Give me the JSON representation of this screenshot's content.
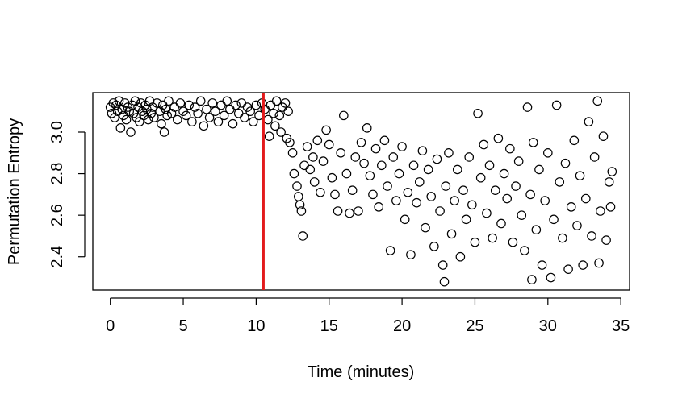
{
  "chart_data": {
    "type": "scatter",
    "title": "",
    "xlabel": "Time (minutes)",
    "ylabel": "Permutation Entropy",
    "xlim": [
      -1.2,
      35.6
    ],
    "ylim": [
      2.24,
      3.19
    ],
    "xticks": [
      "0",
      "5",
      "10",
      "15",
      "20",
      "25",
      "30",
      "35"
    ],
    "yticks": [
      "2.4",
      "2.6",
      "2.8",
      "3.0"
    ],
    "grid": false,
    "legend": "none",
    "marker": "open-circle",
    "marker_color": "#000000",
    "vline": {
      "x": 10.5,
      "color": "#e31a1c"
    },
    "points": [
      [
        0.0,
        3.12
      ],
      [
        0.1,
        3.09
      ],
      [
        0.2,
        3.14
      ],
      [
        0.3,
        3.07
      ],
      [
        0.4,
        3.13
      ],
      [
        0.5,
        3.1
      ],
      [
        0.6,
        3.15
      ],
      [
        0.7,
        3.02
      ],
      [
        0.8,
        3.11
      ],
      [
        0.9,
        3.08
      ],
      [
        1.0,
        3.14
      ],
      [
        1.1,
        3.06
      ],
      [
        1.2,
        3.12
      ],
      [
        1.3,
        3.1
      ],
      [
        1.4,
        3.0
      ],
      [
        1.5,
        3.13
      ],
      [
        1.6,
        3.09
      ],
      [
        1.7,
        3.15
      ],
      [
        1.8,
        3.07
      ],
      [
        1.9,
        3.12
      ],
      [
        2.0,
        3.05
      ],
      [
        2.1,
        3.14
      ],
      [
        2.2,
        3.1
      ],
      [
        2.3,
        3.08
      ],
      [
        2.4,
        3.13
      ],
      [
        2.5,
        3.11
      ],
      [
        2.6,
        3.06
      ],
      [
        2.7,
        3.15
      ],
      [
        2.8,
        3.09
      ],
      [
        2.9,
        3.12
      ],
      [
        3.0,
        3.07
      ],
      [
        3.2,
        3.14
      ],
      [
        3.4,
        3.1
      ],
      [
        3.5,
        3.04
      ],
      [
        3.6,
        3.13
      ],
      [
        3.7,
        3.0
      ],
      [
        3.8,
        3.11
      ],
      [
        3.9,
        3.08
      ],
      [
        4.0,
        3.15
      ],
      [
        4.2,
        3.09
      ],
      [
        4.4,
        3.12
      ],
      [
        4.6,
        3.06
      ],
      [
        4.8,
        3.14
      ],
      [
        5.0,
        3.1
      ],
      [
        5.2,
        3.08
      ],
      [
        5.4,
        3.13
      ],
      [
        5.6,
        3.05
      ],
      [
        5.8,
        3.12
      ],
      [
        6.0,
        3.09
      ],
      [
        6.2,
        3.15
      ],
      [
        6.4,
        3.03
      ],
      [
        6.6,
        3.11
      ],
      [
        6.8,
        3.07
      ],
      [
        7.0,
        3.14
      ],
      [
        7.2,
        3.1
      ],
      [
        7.4,
        3.05
      ],
      [
        7.6,
        3.13
      ],
      [
        7.8,
        3.08
      ],
      [
        8.0,
        3.15
      ],
      [
        8.2,
        3.11
      ],
      [
        8.4,
        3.04
      ],
      [
        8.6,
        3.13
      ],
      [
        8.8,
        3.09
      ],
      [
        9.0,
        3.14
      ],
      [
        9.2,
        3.07
      ],
      [
        9.4,
        3.12
      ],
      [
        9.6,
        3.1
      ],
      [
        9.8,
        3.05
      ],
      [
        10.0,
        3.13
      ],
      [
        10.2,
        3.08
      ],
      [
        10.4,
        3.14
      ],
      [
        10.6,
        3.11
      ],
      [
        10.8,
        3.06
      ],
      [
        11.0,
        3.13
      ],
      [
        11.2,
        3.09
      ],
      [
        11.4,
        3.15
      ],
      [
        11.6,
        3.08
      ],
      [
        11.8,
        3.12
      ],
      [
        12.0,
        3.14
      ],
      [
        12.2,
        3.1
      ],
      [
        10.9,
        2.98
      ],
      [
        11.3,
        3.03
      ],
      [
        11.7,
        3.0
      ],
      [
        12.1,
        2.97
      ],
      [
        12.3,
        2.95
      ],
      [
        12.5,
        2.9
      ],
      [
        12.6,
        2.8
      ],
      [
        12.8,
        2.74
      ],
      [
        12.9,
        2.69
      ],
      [
        13.0,
        2.65
      ],
      [
        13.1,
        2.62
      ],
      [
        13.2,
        2.5
      ],
      [
        13.3,
        2.84
      ],
      [
        13.5,
        2.93
      ],
      [
        13.7,
        2.82
      ],
      [
        13.9,
        2.88
      ],
      [
        14.0,
        2.76
      ],
      [
        14.2,
        2.96
      ],
      [
        14.4,
        2.71
      ],
      [
        14.6,
        2.86
      ],
      [
        14.8,
        3.01
      ],
      [
        15.0,
        2.94
      ],
      [
        15.2,
        2.78
      ],
      [
        15.4,
        2.7
      ],
      [
        15.6,
        2.62
      ],
      [
        15.8,
        2.9
      ],
      [
        16.0,
        3.08
      ],
      [
        16.2,
        2.8
      ],
      [
        16.4,
        2.61
      ],
      [
        16.6,
        2.72
      ],
      [
        16.8,
        2.88
      ],
      [
        17.0,
        2.62
      ],
      [
        17.2,
        2.95
      ],
      [
        17.4,
        2.85
      ],
      [
        17.6,
        3.02
      ],
      [
        17.8,
        2.79
      ],
      [
        18.0,
        2.7
      ],
      [
        18.2,
        2.92
      ],
      [
        18.4,
        2.64
      ],
      [
        18.6,
        2.84
      ],
      [
        18.8,
        2.96
      ],
      [
        19.0,
        2.74
      ],
      [
        19.2,
        2.43
      ],
      [
        19.4,
        2.88
      ],
      [
        19.6,
        2.67
      ],
      [
        19.8,
        2.8
      ],
      [
        20.0,
        2.93
      ],
      [
        20.2,
        2.58
      ],
      [
        20.4,
        2.71
      ],
      [
        20.6,
        2.41
      ],
      [
        20.8,
        2.84
      ],
      [
        21.0,
        2.66
      ],
      [
        21.2,
        2.76
      ],
      [
        21.4,
        2.91
      ],
      [
        21.6,
        2.54
      ],
      [
        21.8,
        2.82
      ],
      [
        22.0,
        2.69
      ],
      [
        22.2,
        2.45
      ],
      [
        22.4,
        2.87
      ],
      [
        22.6,
        2.62
      ],
      [
        22.8,
        2.36
      ],
      [
        22.9,
        2.28
      ],
      [
        23.0,
        2.74
      ],
      [
        23.2,
        2.9
      ],
      [
        23.4,
        2.51
      ],
      [
        23.6,
        2.67
      ],
      [
        23.8,
        2.82
      ],
      [
        24.0,
        2.4
      ],
      [
        24.2,
        2.72
      ],
      [
        24.4,
        2.58
      ],
      [
        24.6,
        2.88
      ],
      [
        24.8,
        2.65
      ],
      [
        25.0,
        2.47
      ],
      [
        25.2,
        3.09
      ],
      [
        25.4,
        2.78
      ],
      [
        25.6,
        2.94
      ],
      [
        25.8,
        2.61
      ],
      [
        26.0,
        2.84
      ],
      [
        26.2,
        2.49
      ],
      [
        26.4,
        2.72
      ],
      [
        26.6,
        2.97
      ],
      [
        26.8,
        2.56
      ],
      [
        27.0,
        2.8
      ],
      [
        27.2,
        2.68
      ],
      [
        27.4,
        2.92
      ],
      [
        27.6,
        2.47
      ],
      [
        27.8,
        2.74
      ],
      [
        28.0,
        2.86
      ],
      [
        28.2,
        2.6
      ],
      [
        28.4,
        2.43
      ],
      [
        28.6,
        3.12
      ],
      [
        28.8,
        2.7
      ],
      [
        28.9,
        2.29
      ],
      [
        29.0,
        2.95
      ],
      [
        29.2,
        2.53
      ],
      [
        29.4,
        2.82
      ],
      [
        29.6,
        2.36
      ],
      [
        29.8,
        2.67
      ],
      [
        30.0,
        2.9
      ],
      [
        30.2,
        2.3
      ],
      [
        30.4,
        2.58
      ],
      [
        30.6,
        3.13
      ],
      [
        30.8,
        2.76
      ],
      [
        31.0,
        2.49
      ],
      [
        31.2,
        2.85
      ],
      [
        31.4,
        2.34
      ],
      [
        31.6,
        2.64
      ],
      [
        31.8,
        2.96
      ],
      [
        32.0,
        2.55
      ],
      [
        32.2,
        2.79
      ],
      [
        32.4,
        2.36
      ],
      [
        32.6,
        2.68
      ],
      [
        32.8,
        3.05
      ],
      [
        33.0,
        2.5
      ],
      [
        33.2,
        2.88
      ],
      [
        33.4,
        3.15
      ],
      [
        33.5,
        2.37
      ],
      [
        33.6,
        2.62
      ],
      [
        33.8,
        2.98
      ],
      [
        34.0,
        2.48
      ],
      [
        34.2,
        2.76
      ],
      [
        34.3,
        2.64
      ],
      [
        34.4,
        2.81
      ]
    ]
  }
}
